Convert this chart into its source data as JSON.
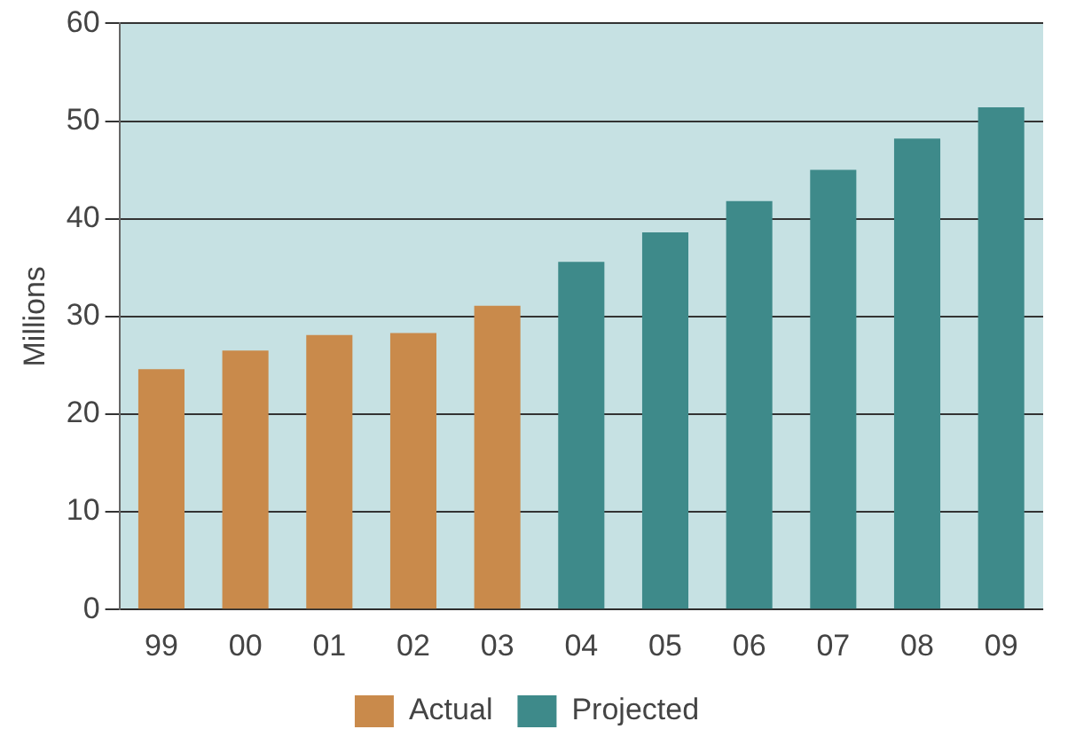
{
  "chart_data": {
    "type": "bar",
    "ylabel": "Millions",
    "categories": [
      "99",
      "00",
      "01",
      "02",
      "03",
      "04",
      "05",
      "06",
      "07",
      "08",
      "09"
    ],
    "series": [
      {
        "name": "Actual",
        "color": "#c98a4b",
        "values": [
          24.6,
          26.5,
          28.1,
          28.3,
          31.1,
          null,
          null,
          null,
          null,
          null,
          null
        ]
      },
      {
        "name": "Projected",
        "color": "#3e8a8a",
        "values": [
          null,
          null,
          null,
          null,
          null,
          35.6,
          38.6,
          41.8,
          45.0,
          48.2,
          51.4
        ]
      }
    ],
    "ylim": [
      0,
      60
    ],
    "yticks": [
      0,
      10,
      20,
      30,
      40,
      50,
      60
    ],
    "grid": "y",
    "legend": "bottom"
  }
}
